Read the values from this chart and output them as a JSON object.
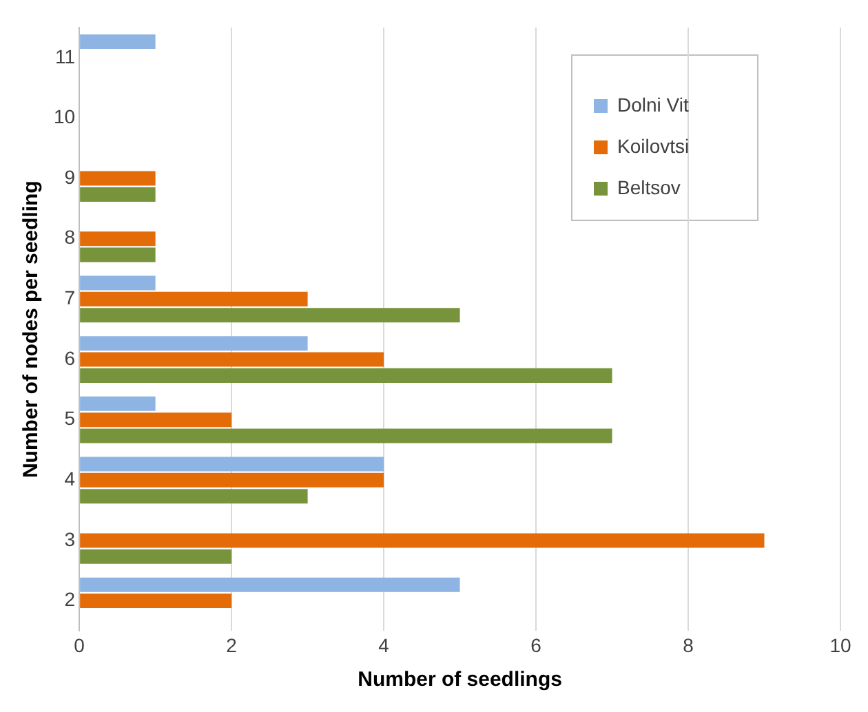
{
  "chart_data": {
    "type": "bar",
    "orientation": "horizontal",
    "xlabel": "Number of seedlings",
    "ylabel": "Number of nodes per seedling",
    "categories": [
      "11",
      "10",
      "9",
      "8",
      "7",
      "6",
      "5",
      "4",
      "3",
      "2"
    ],
    "series": [
      {
        "name": "Dolni Vit",
        "color": "#8db4e2",
        "values": [
          1,
          0,
          0,
          0,
          1,
          3,
          1,
          4,
          0,
          5
        ]
      },
      {
        "name": "Koilovtsi",
        "color": "#e36c09",
        "values": [
          0,
          0,
          1,
          1,
          3,
          4,
          2,
          4,
          9,
          2
        ]
      },
      {
        "name": "Beltsov",
        "color": "#77933c",
        "values": [
          0,
          0,
          1,
          1,
          5,
          7,
          7,
          3,
          2,
          0
        ]
      }
    ],
    "xlim": [
      0,
      10
    ],
    "xticks": [
      0,
      2,
      4,
      6,
      8,
      10
    ],
    "grid": "x",
    "legend": "top right"
  }
}
